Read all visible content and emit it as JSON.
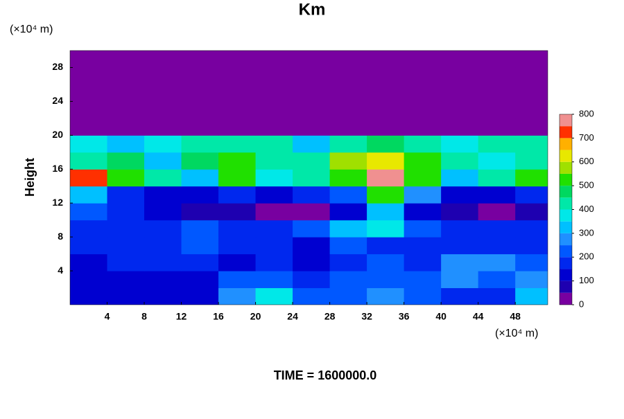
{
  "chart_data": {
    "type": "contour",
    "title": "Km",
    "ylabel": "Height",
    "x_unit": "(×10⁴ m)",
    "y_unit": "(×10⁴ m)",
    "footer": "TIME = 1600000.0",
    "xlim": [
      0,
      51.5
    ],
    "ylim": [
      0,
      30
    ],
    "xticks": [
      4,
      8,
      12,
      16,
      20,
      24,
      28,
      32,
      36,
      40,
      44,
      48
    ],
    "yticks": [
      4,
      8,
      12,
      16,
      20,
      24,
      28
    ],
    "x": [
      2,
      6,
      10,
      14,
      18,
      22,
      26,
      30,
      34,
      38,
      42,
      46,
      50
    ],
    "y": [
      1,
      3,
      5,
      7,
      9,
      11,
      13,
      15,
      17,
      19,
      21,
      23,
      25,
      27,
      29
    ],
    "z": [
      [
        120,
        100,
        120,
        130,
        250,
        350,
        200,
        230,
        260,
        200,
        160,
        150,
        300
      ],
      [
        110,
        120,
        110,
        120,
        200,
        200,
        150,
        200,
        230,
        200,
        250,
        200,
        250
      ],
      [
        130,
        170,
        150,
        180,
        140,
        150,
        130,
        180,
        220,
        180,
        280,
        270,
        200
      ],
      [
        150,
        170,
        160,
        200,
        170,
        150,
        140,
        200,
        180,
        160,
        180,
        170,
        160
      ],
      [
        170,
        180,
        160,
        200,
        150,
        160,
        200,
        300,
        350,
        220,
        180,
        160,
        150
      ],
      [
        200,
        150,
        100,
        50,
        50,
        0,
        0,
        100,
        300,
        100,
        50,
        30,
        50
      ],
      [
        300,
        150,
        100,
        100,
        150,
        100,
        150,
        200,
        500,
        250,
        100,
        100,
        150
      ],
      [
        700,
        500,
        400,
        300,
        500,
        350,
        400,
        500,
        800,
        500,
        300,
        400,
        500
      ],
      [
        400,
        450,
        300,
        450,
        500,
        400,
        400,
        550,
        600,
        500,
        400,
        350,
        400
      ],
      [
        350,
        300,
        350,
        400,
        400,
        400,
        300,
        400,
        450,
        400,
        350,
        400,
        400
      ],
      [
        0,
        0,
        0,
        0,
        0,
        0,
        0,
        0,
        0,
        0,
        0,
        0,
        0
      ],
      [
        0,
        0,
        0,
        0,
        0,
        0,
        0,
        0,
        0,
        0,
        0,
        0,
        0
      ],
      [
        0,
        0,
        0,
        0,
        0,
        0,
        0,
        0,
        0,
        0,
        0,
        0,
        0
      ],
      [
        0,
        0,
        0,
        0,
        0,
        0,
        0,
        0,
        0,
        0,
        0,
        0,
        0
      ],
      [
        0,
        0,
        0,
        0,
        0,
        0,
        0,
        0,
        0,
        0,
        0,
        0,
        0
      ]
    ],
    "levels": [
      0,
      50,
      100,
      150,
      200,
      250,
      300,
      350,
      400,
      450,
      500,
      550,
      600,
      650,
      700,
      750,
      800
    ],
    "colors": [
      "#7800a0",
      "#1e00b0",
      "#0000d0",
      "#0028ee",
      "#0058ff",
      "#2090ff",
      "#00c0ff",
      "#00e8e8",
      "#00e8a8",
      "#00d860",
      "#20e000",
      "#a0e000",
      "#e8e800",
      "#ffb000",
      "#ff3000",
      "#f09090"
    ],
    "cbticks": [
      0,
      100,
      200,
      300,
      400,
      500,
      600,
      700,
      800
    ]
  }
}
